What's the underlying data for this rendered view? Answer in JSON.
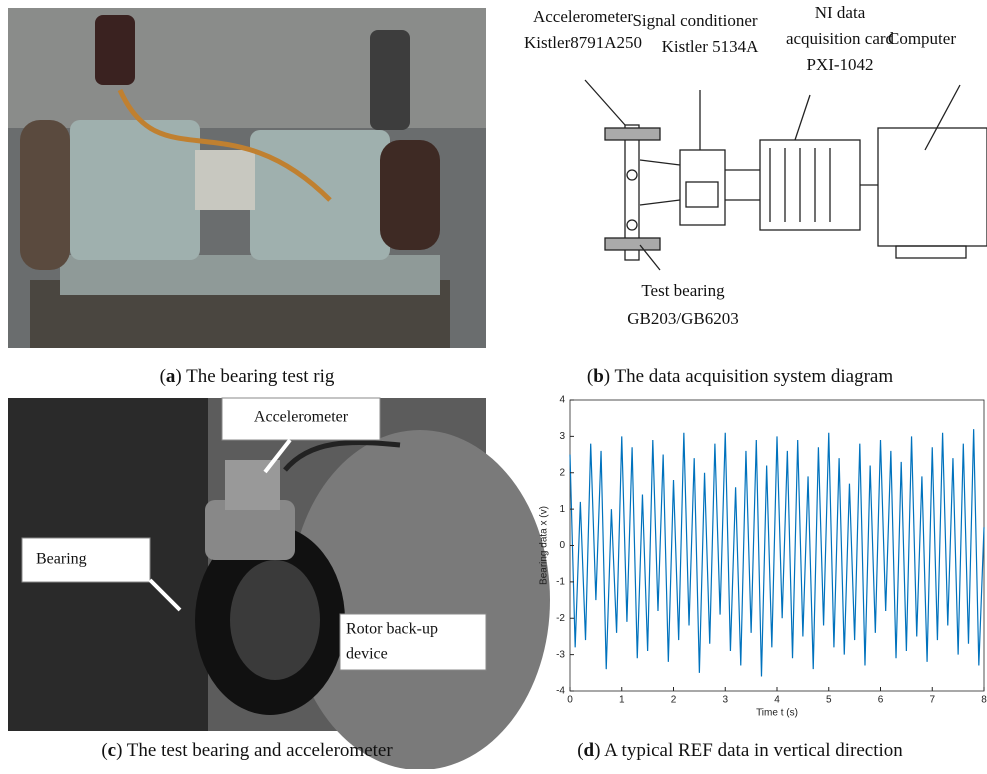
{
  "panel_a": {
    "caption": [
      "(",
      "a",
      ") The bearing test rig"
    ]
  },
  "panel_b": {
    "caption": [
      "(",
      "b",
      ") The data acquisition system diagram"
    ],
    "labels": {
      "accelerometer": [
        "Accelerometer",
        "Kistler8791A250"
      ],
      "conditioner": [
        "Signal conditioner",
        "Kistler 5134A"
      ],
      "daq": [
        "NI data",
        "acquisition card",
        "PXI-1042"
      ],
      "computer": "Computer",
      "bearing": [
        "Test bearing",
        "GB203/GB6203"
      ]
    }
  },
  "panel_c": {
    "caption": [
      "(",
      "c",
      ") The test bearing and accelerometer"
    ],
    "labels": {
      "accelerometer": "Accelerometer",
      "bearing": "Bearing",
      "rotor": [
        "Rotor back-up",
        "device"
      ]
    }
  },
  "panel_d": {
    "caption": [
      "(",
      "d",
      ") A typical REF data in vertical direction"
    ]
  },
  "chart_data": {
    "type": "line",
    "xlabel": "Time t (s)",
    "ylabel": "Bearing data x (v)",
    "x": [
      0,
      0.1,
      0.2,
      0.3,
      0.4,
      0.5,
      0.6,
      0.7,
      0.8,
      0.9,
      1,
      1.1,
      1.2,
      1.3,
      1.4,
      1.5,
      1.6,
      1.7,
      1.8,
      1.9,
      2,
      2.1,
      2.2,
      2.3,
      2.4,
      2.5,
      2.6,
      2.7,
      2.8,
      2.9,
      3,
      3.1,
      3.2,
      3.3,
      3.4,
      3.5,
      3.6,
      3.7,
      3.8,
      3.9,
      4,
      4.1,
      4.2,
      4.3,
      4.4,
      4.5,
      4.6,
      4.7,
      4.8,
      4.9,
      5,
      5.1,
      5.2,
      5.3,
      5.4,
      5.5,
      5.6,
      5.7,
      5.8,
      5.9,
      6,
      6.1,
      6.2,
      6.3,
      6.4,
      6.5,
      6.6,
      6.7,
      6.8,
      6.9,
      7,
      7.1,
      7.2,
      7.3,
      7.4,
      7.5,
      7.6,
      7.7,
      7.8,
      7.9,
      8
    ],
    "values": [
      2.5,
      -2.8,
      1.2,
      -2.6,
      2.8,
      -1.5,
      2.6,
      -3.4,
      1.0,
      -2.4,
      3.0,
      -2.1,
      2.7,
      -3.1,
      1.4,
      -2.9,
      2.9,
      -1.8,
      2.5,
      -3.2,
      1.8,
      -2.6,
      3.1,
      -2.2,
      2.4,
      -3.5,
      2.0,
      -2.7,
      2.8,
      -1.9,
      3.1,
      -2.9,
      1.6,
      -3.3,
      2.6,
      -2.4,
      2.9,
      -3.6,
      2.2,
      -2.8,
      3.0,
      -2.0,
      2.6,
      -3.1,
      2.9,
      -2.5,
      1.9,
      -3.4,
      2.7,
      -2.2,
      3.1,
      -2.8,
      2.4,
      -3.0,
      1.7,
      -2.6,
      2.8,
      -3.3,
      2.2,
      -2.4,
      2.9,
      -1.8,
      2.6,
      -3.1,
      2.3,
      -2.9,
      3.0,
      -2.5,
      1.9,
      -3.2,
      2.7,
      -2.6,
      3.1,
      -2.2,
      2.4,
      -3.0,
      2.8,
      -2.7,
      3.2,
      -3.3,
      0.5
    ],
    "color": "#0072bd",
    "xlim": [
      0,
      8
    ],
    "xticks": [
      0,
      1,
      2,
      3,
      4,
      5,
      6,
      7,
      8
    ],
    "ylim": [
      -4,
      4
    ],
    "yticks": [
      -4,
      -3,
      -2,
      -1,
      0,
      1,
      2,
      3,
      4
    ]
  }
}
